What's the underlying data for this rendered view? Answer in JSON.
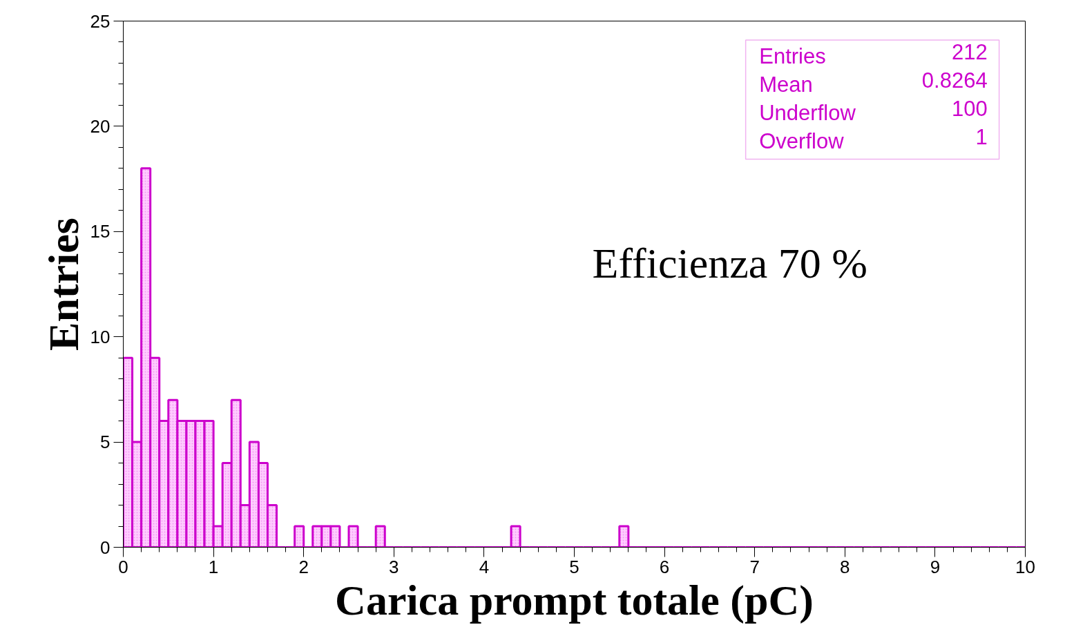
{
  "chart_data": {
    "type": "histogram",
    "xlabel": "Carica prompt totale (pC)",
    "ylabel": "Entries",
    "bins": [
      0,
      0.1,
      0.2,
      0.3,
      0.4,
      0.5,
      0.6,
      0.7,
      0.8,
      0.9,
      1,
      1.1,
      1.2,
      1.3,
      1.4,
      1.5,
      1.6,
      1.7,
      1.8,
      1.9,
      2,
      2.1,
      2.2,
      2.3,
      2.4,
      2.5,
      2.6,
      2.7,
      2.8,
      2.9,
      3,
      3.1,
      3.2,
      3.3,
      3.4,
      3.5,
      3.6,
      3.7,
      3.8,
      3.9,
      4,
      4.1,
      4.2,
      4.3,
      4.4,
      4.5,
      4.6,
      4.7,
      4.8,
      4.9,
      5,
      5.1,
      5.2,
      5.3,
      5.4,
      5.5,
      5.6,
      5.7,
      5.8,
      5.9,
      6,
      6.1,
      6.2,
      6.3,
      6.4,
      6.5,
      6.6,
      6.7,
      6.8,
      6.9,
      7,
      7.1,
      7.2,
      7.3,
      7.4,
      7.5,
      7.6,
      7.7,
      7.8,
      7.9,
      8,
      8.1,
      8.2,
      8.3,
      8.4,
      8.5,
      8.6,
      8.7,
      8.8,
      8.9,
      9,
      9.1,
      9.2,
      9.3,
      9.4,
      9.5,
      9.6,
      9.7,
      9.8,
      9.9,
      10
    ],
    "values": [
      9,
      5,
      18,
      9,
      6,
      7,
      6,
      6,
      6,
      6,
      1,
      4,
      7,
      2,
      5,
      4,
      2,
      0,
      0,
      1,
      0,
      1,
      1,
      1,
      0,
      1,
      0,
      0,
      1,
      0,
      0,
      0,
      0,
      0,
      0,
      0,
      0,
      0,
      0,
      0,
      0,
      0,
      0,
      1,
      0,
      0,
      0,
      0,
      0,
      0,
      0,
      0,
      0,
      0,
      0,
      1,
      0,
      0,
      0,
      0,
      0,
      0,
      0,
      0,
      0,
      0,
      0,
      0,
      0,
      0,
      0,
      0,
      0,
      0,
      0,
      0,
      0,
      0,
      0,
      0,
      0,
      0,
      0,
      0,
      0,
      0,
      0,
      0,
      0,
      0,
      0,
      0,
      0,
      0,
      0,
      0,
      0,
      0,
      0,
      0
    ],
    "color": "#cc00cc",
    "xlim": [
      0,
      10
    ],
    "ylim": [
      0,
      25
    ],
    "xticks": [
      0,
      1,
      2,
      3,
      4,
      5,
      6,
      7,
      8,
      9,
      10
    ],
    "yticks": [
      0,
      5,
      10,
      15,
      20,
      25
    ],
    "grid": false,
    "annotations": [
      "Entries",
      "212",
      "Mean",
      "0.8264",
      "Underflow",
      "100",
      "Overflow",
      "1",
      "Efficienza 70 %"
    ]
  }
}
